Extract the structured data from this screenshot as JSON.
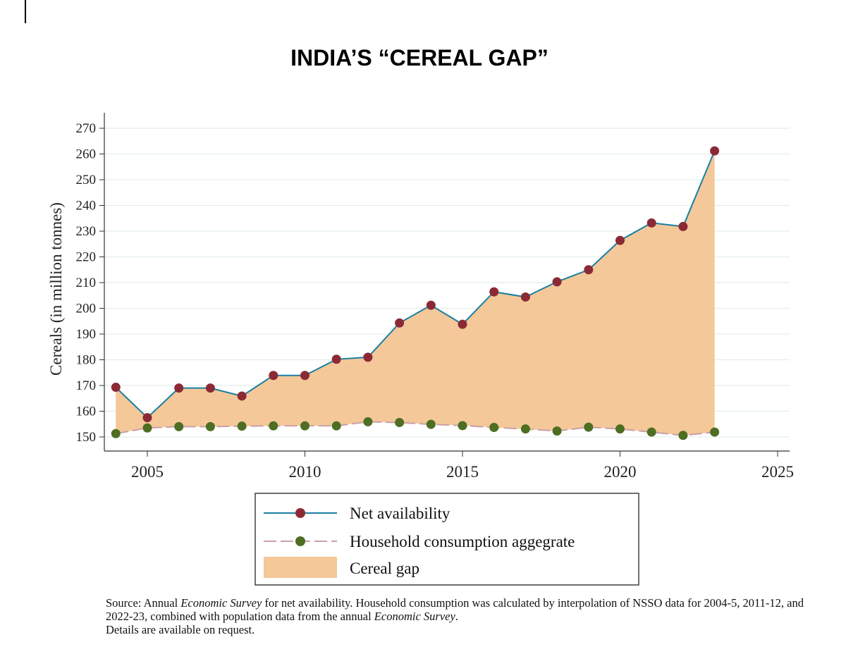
{
  "page": {
    "title": "INDIA’S “CEREAL GAP”"
  },
  "chart_data": {
    "type": "area",
    "ylabel": "Cereals (in million tonnes)",
    "xlabel": "",
    "xlim": [
      2004,
      2025
    ],
    "ylim": [
      145,
      273
    ],
    "x_ticks": [
      2005,
      2010,
      2015,
      2020,
      2025
    ],
    "y_ticks": [
      150,
      160,
      170,
      180,
      190,
      200,
      210,
      220,
      230,
      240,
      250,
      260,
      270
    ],
    "grid": true,
    "legend_position": "bottom",
    "x": [
      2004,
      2005,
      2006,
      2007,
      2008,
      2009,
      2010,
      2011,
      2012,
      2013,
      2014,
      2015,
      2016,
      2017,
      2018,
      2019,
      2020,
      2021,
      2022,
      2023
    ],
    "series": [
      {
        "name": "Net availability",
        "color": "#1a7fa3",
        "marker_color": "#8b2a35",
        "values": [
          169.3,
          157.5,
          169.0,
          169.0,
          165.9,
          173.9,
          173.9,
          180.2,
          181.0,
          194.3,
          201.2,
          193.8,
          206.4,
          204.4,
          210.3,
          215.0,
          226.4,
          233.2,
          231.8,
          261.2
        ]
      },
      {
        "name": "Household consumption aggegrate",
        "color": "#c9a0a8",
        "marker_color": "#4e6e22",
        "values": [
          151.3,
          153.5,
          154.0,
          154.0,
          154.2,
          154.3,
          154.3,
          154.3,
          155.9,
          155.6,
          154.9,
          154.4,
          153.7,
          153.1,
          152.3,
          153.8,
          153.1,
          151.9,
          150.6,
          151.9
        ]
      },
      {
        "name": "Cereal gap",
        "color": "#f4c898"
      }
    ]
  },
  "source_note": {
    "part1": "Source: Annual ",
    "italic1": "Economic Survey",
    "part2": " for net availability. Household consumption was calculated by interpolation of NSSO data for 2004-5, 2011-12, and 2022-23, combined with population data from the annual ",
    "italic2": "Economic Survey",
    "part3": ".",
    "line3": "Details are available on request."
  }
}
